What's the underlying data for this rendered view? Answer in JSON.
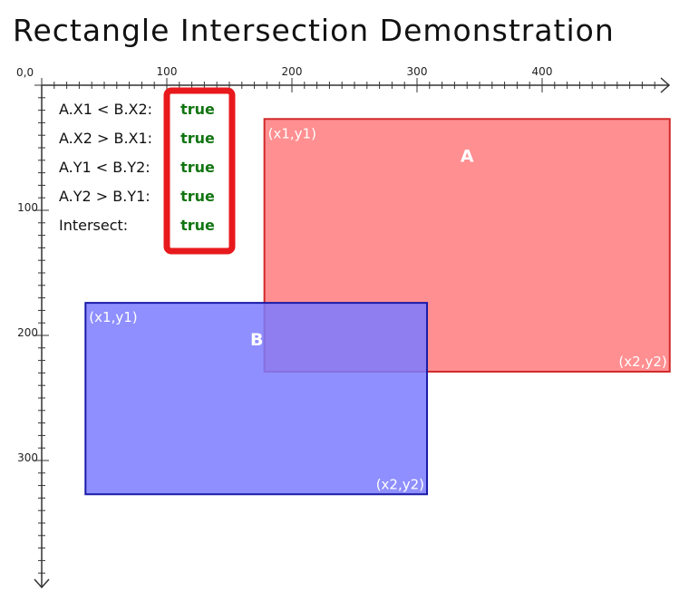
{
  "title": "Rectangle Intersection Demonstration",
  "axes": {
    "origin_label": "0,0",
    "x_tick_labels": [
      {
        "value": 100,
        "label": "100"
      },
      {
        "value": 200,
        "label": "200"
      },
      {
        "value": 300,
        "label": "300"
      },
      {
        "value": 400,
        "label": "400"
      }
    ],
    "y_tick_labels": [
      {
        "value": 100,
        "label": "100"
      },
      {
        "value": 200,
        "label": "200"
      },
      {
        "value": 300,
        "label": "300"
      }
    ],
    "minor_tick_step": 10
  },
  "conditions": [
    {
      "label": "A.X1 < B.X2:",
      "value": "true"
    },
    {
      "label": "A.X2 > B.X1:",
      "value": "true"
    },
    {
      "label": "A.Y1 < B.Y2:",
      "value": "true"
    },
    {
      "label": "A.Y2 > B.Y1:",
      "value": "true"
    },
    {
      "label": "Intersect:",
      "value": "true"
    }
  ],
  "rectangles": [
    {
      "name": "A",
      "x1": 178,
      "y1": 27,
      "x2": 502,
      "y2": 229,
      "fill": "#ff7b7e",
      "stroke": "#d22a2a",
      "corner1_label": "(x1,y1)",
      "corner2_label": "(x2,y2)"
    },
    {
      "name": "B",
      "x1": 35,
      "y1": 174,
      "x2": 308,
      "y2": 327,
      "fill": "#7b7bff",
      "stroke": "#1a1aa8",
      "corner1_label": "(x1,y1)",
      "corner2_label": "(x2,y2)"
    }
  ],
  "colors": {
    "true_text": "#127512",
    "highlight_box": "#e8191c",
    "axis": "#333333"
  }
}
